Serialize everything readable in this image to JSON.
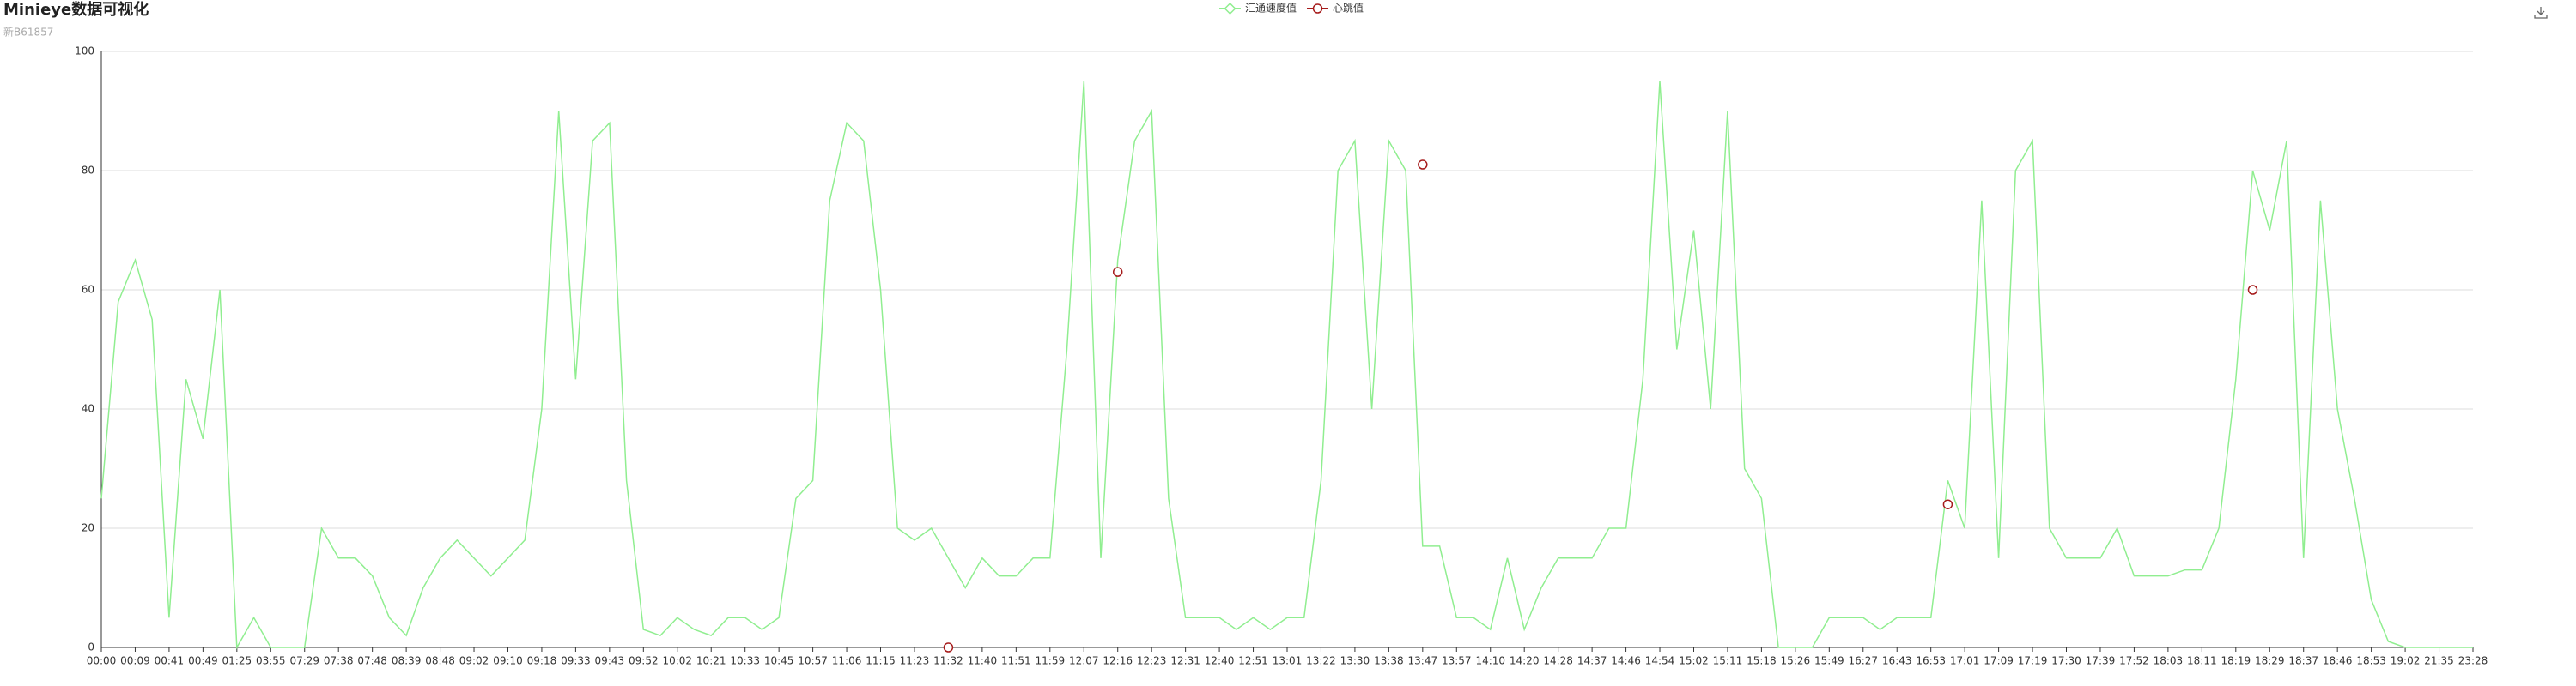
{
  "chart_data": {
    "type": "line",
    "title": "Minieye数据可视化",
    "subtitle": "新B61857",
    "categories": [
      "00:00",
      null,
      "00:09",
      null,
      "00:41",
      null,
      "00:49",
      null,
      "01:25",
      null,
      "03:55",
      null,
      "07:29",
      null,
      "07:38",
      null,
      "07:48",
      null,
      "08:39",
      null,
      "08:48",
      null,
      "09:02",
      null,
      "09:10",
      null,
      "09:18",
      null,
      "09:33",
      null,
      "09:43",
      null,
      "09:52",
      null,
      "10:02",
      null,
      "10:21",
      null,
      "10:33",
      null,
      "10:45",
      null,
      "10:57",
      null,
      "11:06",
      null,
      "11:15",
      null,
      "11:23",
      null,
      "11:32",
      null,
      "11:40",
      null,
      "11:51",
      null,
      "11:59",
      null,
      "12:07",
      null,
      "12:16",
      null,
      "12:23",
      null,
      "12:31",
      null,
      "12:40",
      null,
      "12:51",
      null,
      "13:01",
      null,
      "13:22",
      null,
      "13:30",
      null,
      "13:38",
      null,
      "13:47",
      null,
      "13:57",
      null,
      "14:10",
      null,
      "14:20",
      null,
      "14:28",
      null,
      "14:37",
      null,
      "14:46",
      null,
      "14:54",
      null,
      "15:02",
      null,
      "15:11",
      null,
      "15:18",
      null,
      "15:26",
      null,
      "15:49",
      null,
      "16:27",
      null,
      "16:43",
      null,
      "16:53",
      null,
      "17:01",
      null,
      "17:09",
      null,
      "17:19",
      null,
      "17:30",
      null,
      "17:39",
      null,
      "17:52",
      null,
      "18:03",
      null,
      "18:11",
      null,
      "18:19",
      null,
      "18:29",
      null,
      "18:37",
      null,
      "18:46",
      null,
      "18:53",
      null,
      "19:02",
      null,
      "21:35",
      null,
      "23:28"
    ],
    "series": [
      {
        "name": "汇通速度值",
        "color": "#90ee90",
        "marker": "diamond",
        "values": [
          25,
          58,
          65,
          55,
          5,
          45,
          35,
          60,
          0,
          5,
          0,
          0,
          0,
          20,
          15,
          15,
          12,
          5,
          2,
          10,
          15,
          18,
          15,
          12,
          15,
          18,
          40,
          90,
          45,
          85,
          88,
          28,
          3,
          2,
          5,
          3,
          2,
          5,
          5,
          3,
          5,
          25,
          28,
          75,
          88,
          85,
          60,
          20,
          18,
          20,
          15,
          10,
          15,
          12,
          12,
          15,
          15,
          50,
          95,
          15,
          65,
          85,
          90,
          25,
          5,
          5,
          5,
          3,
          5,
          3,
          5,
          5,
          28,
          80,
          85,
          40,
          85,
          80,
          17,
          17,
          5,
          5,
          3,
          15,
          3,
          10,
          15,
          15,
          15,
          20,
          20,
          45,
          95,
          50,
          70,
          40,
          90,
          30,
          25,
          0,
          0,
          0,
          5,
          5,
          5,
          3,
          5,
          5,
          5,
          28,
          20,
          75,
          15,
          80,
          85,
          20,
          15,
          15,
          15,
          20,
          12,
          12,
          12,
          13,
          13,
          20,
          45,
          80,
          70,
          85,
          15,
          75,
          40,
          25,
          8,
          1,
          0,
          0,
          0,
          0,
          0
        ]
      },
      {
        "name": "心跳值",
        "color": "#a61c1c",
        "marker": "circle",
        "values": [
          null,
          null,
          null,
          null,
          null,
          null,
          null,
          null,
          null,
          null,
          null,
          null,
          null,
          null,
          null,
          null,
          null,
          null,
          null,
          null,
          null,
          null,
          null,
          null,
          null,
          null,
          null,
          null,
          null,
          null,
          null,
          null,
          null,
          null,
          null,
          null,
          null,
          null,
          null,
          null,
          null,
          null,
          null,
          null,
          null,
          null,
          null,
          null,
          null,
          null,
          0,
          null,
          null,
          null,
          null,
          null,
          null,
          null,
          null,
          null,
          63,
          null,
          null,
          null,
          null,
          null,
          null,
          null,
          null,
          null,
          null,
          null,
          null,
          null,
          null,
          null,
          null,
          null,
          81,
          null,
          null,
          null,
          null,
          null,
          null,
          null,
          null,
          null,
          null,
          null,
          null,
          null,
          null,
          null,
          null,
          null,
          null,
          null,
          null,
          null,
          null,
          null,
          null,
          null,
          null,
          null,
          null,
          null,
          null,
          24,
          null,
          null,
          null,
          null,
          null,
          null,
          null,
          null,
          null,
          null,
          null,
          null,
          null,
          null,
          null,
          null,
          null,
          60,
          null,
          null,
          null,
          null,
          null,
          null,
          null,
          null,
          null,
          null,
          null,
          null,
          null
        ]
      }
    ],
    "ylim": [
      0,
      100
    ],
    "yticks": [
      0,
      20,
      40,
      60,
      80,
      100
    ],
    "grid": true,
    "legend": "top"
  }
}
